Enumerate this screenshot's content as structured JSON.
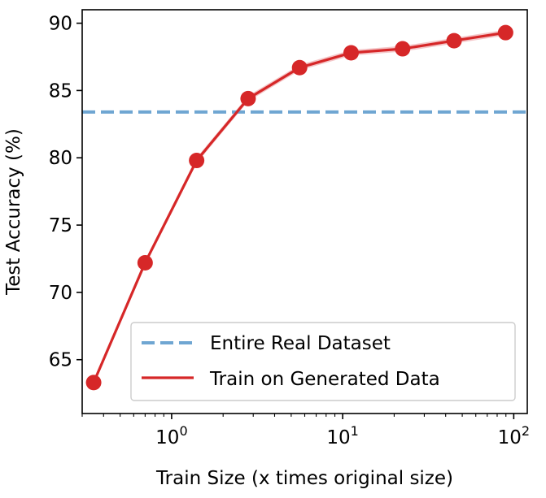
{
  "chart_data": {
    "type": "line",
    "xlabel": "Train Size (x times original size)",
    "ylabel": "Test Accuracy (%)",
    "x_scale": "log",
    "xlim": [
      0.3,
      120
    ],
    "ylim": [
      61,
      91
    ],
    "grid": false,
    "legend_position": "bottom-right",
    "x_ticks": [
      {
        "value": 1,
        "base": "10",
        "exp": "0"
      },
      {
        "value": 10,
        "base": "10",
        "exp": "1"
      },
      {
        "value": 100,
        "base": "10",
        "exp": "2"
      }
    ],
    "y_ticks": [
      "65",
      "70",
      "75",
      "80",
      "85",
      "90"
    ],
    "series": [
      {
        "name": "Entire Real Dataset",
        "kind": "hline",
        "y": 83.4,
        "color": "#6fa6d2",
        "style": "dashed"
      },
      {
        "name": "Train on Generated Data",
        "kind": "line",
        "color": "#d62728",
        "band_color": "#f0b3b5",
        "x": [
          0.35,
          0.7,
          1.4,
          2.8,
          5.6,
          11.2,
          22.4,
          44.8,
          89.6
        ],
        "y": [
          63.3,
          72.2,
          79.8,
          84.4,
          86.7,
          87.8,
          88.1,
          88.7,
          89.3
        ]
      }
    ]
  }
}
